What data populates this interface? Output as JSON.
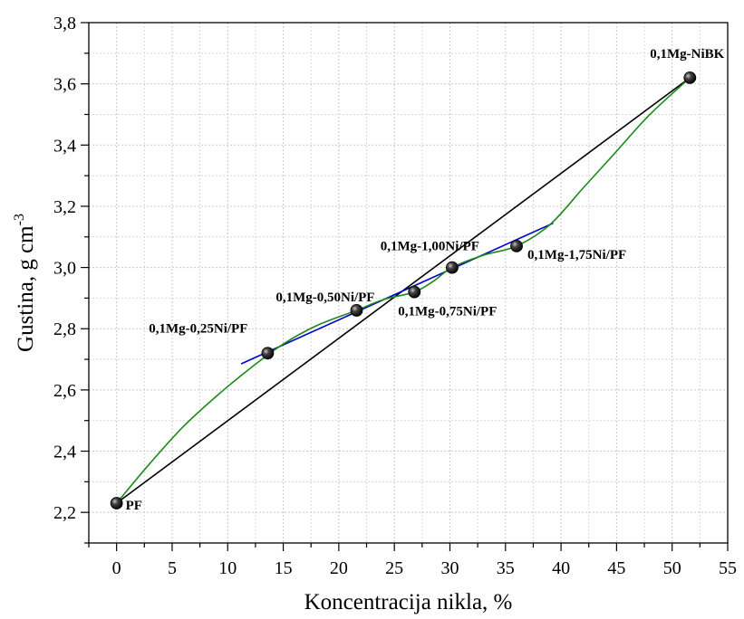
{
  "chart_data": {
    "type": "scatter",
    "title": "",
    "xlabel": "Koncentracija nikla, %",
    "ylabel": "Gustina, g cm",
    "ylabel_superscript": "-3",
    "xlim": [
      -2.5,
      55
    ],
    "ylim": [
      2.1,
      3.8
    ],
    "x_ticks": [
      0,
      5,
      10,
      15,
      20,
      25,
      30,
      35,
      40,
      45,
      50,
      55
    ],
    "x_tick_labels": [
      "0",
      "5",
      "10",
      "15",
      "20",
      "25",
      "30",
      "35",
      "40",
      "45",
      "50",
      "55"
    ],
    "y_ticks": [
      2.2,
      2.4,
      2.6,
      2.8,
      3.0,
      3.2,
      3.4,
      3.6,
      3.8
    ],
    "y_tick_labels": [
      "2,2",
      "2,4",
      "2,6",
      "2,8",
      "3,0",
      "3,2",
      "3,4",
      "3,6",
      "3,8"
    ],
    "grid": true,
    "points": [
      {
        "label": "PF",
        "x": 0,
        "y": 2.23
      },
      {
        "label": "0,1Mg-0,25Ni/PF",
        "x": 13.6,
        "y": 2.72
      },
      {
        "label": "0,1Mg-0,50Ni/PF",
        "x": 21.6,
        "y": 2.86
      },
      {
        "label": "0,1Mg-0,75Ni/PF",
        "x": 26.8,
        "y": 2.92
      },
      {
        "label": "0,1Mg-1,00Ni/PF",
        "x": 30.2,
        "y": 3.0
      },
      {
        "label": "0,1Mg-1,75Ni/PF",
        "x": 36.0,
        "y": 3.07
      },
      {
        "label": "0,1Mg-NiBK",
        "x": 51.6,
        "y": 3.62
      }
    ],
    "lines": [
      {
        "name": "",
        "color": "#000000",
        "x": [
          0,
          51.6
        ],
        "y": [
          2.23,
          3.62
        ]
      },
      {
        "name": "",
        "color": "#0000cc",
        "x": [
          11.2,
          39.3
        ],
        "y": [
          2.685,
          3.145
        ]
      },
      {
        "name": "",
        "color": "#1a8a1a",
        "x": [
          0,
          3,
          6,
          9,
          12,
          15,
          18,
          21.6,
          24,
          26.8,
          28.5,
          30.2,
          33,
          36,
          39,
          42,
          45,
          48,
          51.6
        ],
        "y": [
          2.23,
          2.36,
          2.48,
          2.58,
          2.67,
          2.75,
          2.81,
          2.86,
          2.895,
          2.92,
          2.955,
          3.0,
          3.04,
          3.07,
          3.14,
          3.26,
          3.38,
          3.5,
          3.62
        ]
      }
    ]
  }
}
